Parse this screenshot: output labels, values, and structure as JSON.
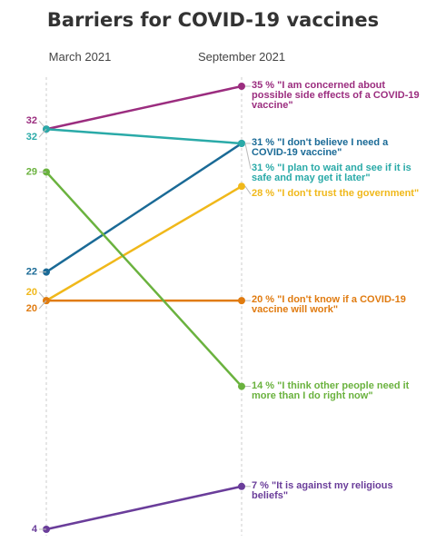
{
  "chart_data": {
    "type": "slope",
    "title": "Barriers for COVID-19 vaccines",
    "categories": [
      "March 2021",
      "September 2021"
    ],
    "series": [
      {
        "name": "\"I am concerned about possible side effects of a COVID-19 vaccine\"",
        "color": "#9b2d7f",
        "values": [
          32,
          35
        ],
        "value_labels": [
          "32",
          "35 %"
        ]
      },
      {
        "name": "\"I don't believe I need a COVID-19 vaccine\"",
        "color": "#1a6a96",
        "values": [
          22,
          31
        ],
        "value_labels": [
          "22",
          "31 %"
        ]
      },
      {
        "name": "\"I plan to wait and see if it is safe and may get it later\"",
        "color": "#2aaaa8",
        "values": [
          32,
          31
        ],
        "value_labels": [
          "32",
          "31 %"
        ]
      },
      {
        "name": "\"I don't trust the government\"",
        "color": "#f0b81a",
        "values": [
          20,
          28
        ],
        "value_labels": [
          "20",
          "28 %"
        ]
      },
      {
        "name": "\"I don't know if a COVID-19 vaccine will work\"",
        "color": "#e07b10",
        "values": [
          20,
          20
        ],
        "value_labels": [
          "20",
          "20 %"
        ]
      },
      {
        "name": "\"I think other people need it more than I do right now\"",
        "color": "#6ab23e",
        "values": [
          29,
          14
        ],
        "value_labels": [
          "29",
          "14 %"
        ]
      },
      {
        "name": "\"It is against my religious beliefs\"",
        "color": "#6a3d9a",
        "values": [
          4,
          7
        ],
        "value_labels": [
          "4",
          "7 %"
        ]
      }
    ]
  }
}
